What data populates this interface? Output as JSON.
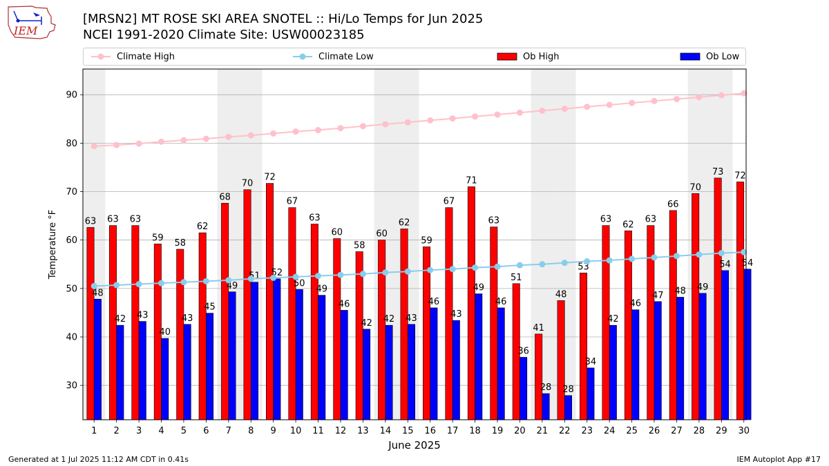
{
  "header": {
    "title_line1": "[MRSN2] MT ROSE SKI AREA SNOTEL :: Hi/Lo Temps for Jun 2025",
    "title_line2": "NCEI 1991-2020 Climate Site: USW00023185",
    "logo_text": "IEM"
  },
  "footer": {
    "generated": "Generated at 1 Jul 2025 11:12 AM CDT in 0.41s",
    "app": "IEM Autoplot App #17"
  },
  "colors": {
    "ob_high": "#ff0000",
    "ob_low": "#0000ff",
    "climate_high": "#ffc0cb",
    "climate_low": "#87ceeb",
    "weekend_shade": "#eeeeee",
    "grid": "#b0b0b0"
  },
  "chart_data": {
    "type": "bar",
    "title": "[MRSN2] MT ROSE SKI AREA SNOTEL :: Hi/Lo Temps for Jun 2025",
    "subtitle": "NCEI 1991-2020 Climate Site: USW00023185",
    "xlabel": "June 2025",
    "ylabel": "Temperature °F",
    "ylim": [
      22.9,
      95.3
    ],
    "yticks": [
      30,
      40,
      50,
      60,
      70,
      80,
      90
    ],
    "grid": "horizontal",
    "legend_position": "top",
    "categories": [
      "1",
      "2",
      "3",
      "4",
      "5",
      "6",
      "7",
      "8",
      "9",
      "10",
      "11",
      "12",
      "13",
      "14",
      "15",
      "16",
      "17",
      "18",
      "19",
      "20",
      "21",
      "22",
      "23",
      "24",
      "25",
      "26",
      "27",
      "28",
      "29",
      "30"
    ],
    "weekend_days": [
      1,
      7,
      8,
      14,
      15,
      21,
      22,
      28,
      29
    ],
    "series": [
      {
        "name": "Ob High",
        "kind": "bar",
        "values": [
          62.6,
          63.0,
          63.0,
          59.2,
          58.1,
          61.5,
          67.6,
          70.4,
          71.7,
          66.7,
          63.3,
          60.3,
          57.6,
          60.0,
          62.3,
          58.6,
          66.7,
          71.0,
          62.7,
          51.0,
          40.6,
          47.5,
          53.2,
          63.0,
          61.9,
          63.0,
          66.1,
          69.6,
          72.8,
          72.0
        ],
        "labels": [
          "63",
          "63",
          "63",
          "59",
          "58",
          "62",
          "68",
          "70",
          "72",
          "67",
          "63",
          "60",
          "58",
          "60",
          "62",
          "59",
          "67",
          "71",
          "63",
          "51",
          "41",
          "48",
          "53",
          "63",
          "62",
          "63",
          "66",
          "70",
          "73",
          "72"
        ]
      },
      {
        "name": "Ob Low",
        "kind": "bar",
        "values": [
          47.8,
          42.4,
          43.2,
          39.7,
          42.6,
          44.9,
          49.3,
          51.3,
          52.0,
          49.8,
          48.6,
          45.5,
          41.6,
          42.4,
          42.6,
          46.0,
          43.4,
          48.9,
          46.0,
          35.8,
          28.3,
          27.9,
          33.6,
          42.4,
          45.6,
          47.3,
          48.2,
          49.0,
          53.7,
          54.0
        ],
        "labels": [
          "48",
          "42",
          "43",
          "40",
          "43",
          "45",
          "49",
          "51",
          "52",
          "50",
          "49",
          "46",
          "42",
          "42",
          "43",
          "46",
          "43",
          "49",
          "46",
          "36",
          "28",
          "28",
          "34",
          "42",
          "46",
          "47",
          "48",
          "49",
          "54",
          "54"
        ]
      },
      {
        "name": "Climate High",
        "kind": "line",
        "values": [
          79.4,
          79.6,
          79.9,
          80.3,
          80.6,
          80.9,
          81.3,
          81.6,
          82.0,
          82.4,
          82.7,
          83.1,
          83.5,
          83.9,
          84.3,
          84.7,
          85.1,
          85.5,
          85.9,
          86.3,
          86.7,
          87.1,
          87.5,
          87.9,
          88.3,
          88.7,
          89.1,
          89.5,
          89.9,
          90.3
        ]
      },
      {
        "name": "Climate Low",
        "kind": "line",
        "values": [
          50.5,
          50.7,
          50.9,
          51.1,
          51.3,
          51.5,
          51.7,
          52.0,
          52.2,
          52.4,
          52.6,
          52.8,
          53.0,
          53.3,
          53.5,
          53.8,
          54.0,
          54.3,
          54.5,
          54.8,
          55.0,
          55.3,
          55.6,
          55.8,
          56.1,
          56.4,
          56.7,
          57.0,
          57.3,
          57.5
        ]
      }
    ]
  }
}
